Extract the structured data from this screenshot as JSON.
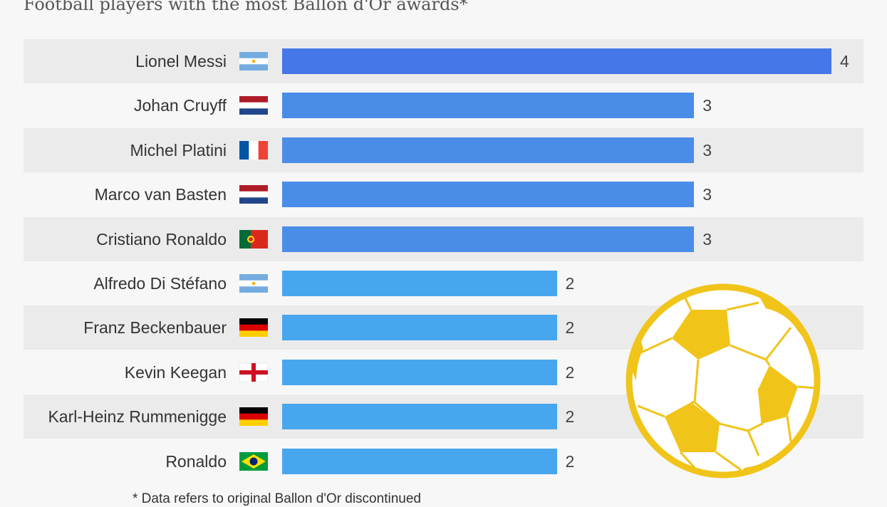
{
  "chart_data": {
    "type": "bar",
    "orientation": "horizontal",
    "title": "Football players with the most Ballon d'Or awards*",
    "categories": [
      "Lionel Messi",
      "Johan Cruyff",
      "Michel Platini",
      "Marco van Basten",
      "Cristiano Ronaldo",
      "Alfredo Di Stéfano",
      "Franz Beckenbauer",
      "Kevin Keegan",
      "Karl-Heinz Rummenigge",
      "Ronaldo"
    ],
    "flags": [
      "argentina",
      "netherlands",
      "france",
      "netherlands",
      "portugal",
      "argentina",
      "germany",
      "england",
      "germany",
      "brazil"
    ],
    "values": [
      4,
      3,
      3,
      3,
      3,
      2,
      2,
      2,
      2,
      2
    ],
    "xlim": [
      0,
      4
    ],
    "colors": {
      "4": "#4577e8",
      "3": "#4a8de9",
      "2": "#48a6ee"
    },
    "footnote": "* Data refers to original Ballon d'Or discontinued"
  },
  "ball_color": "#f0c419"
}
